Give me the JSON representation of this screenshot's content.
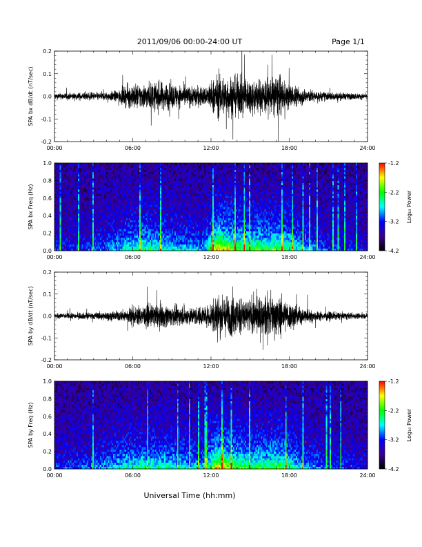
{
  "header": {
    "title": "2011/09/06  00:00-24:00 UT",
    "page": "Page 1/1"
  },
  "footer": {
    "xlabel": "Universal Time (hh:mm)"
  },
  "colorbar": {
    "label": "Log₁₀ Power",
    "ticks": [
      "-1.2",
      "-2.2",
      "-3.2",
      "-4.2"
    ],
    "colors": [
      "#ff0000",
      "#ffff00",
      "#00ff00",
      "#00ffff",
      "#0000ff",
      "#3a0090",
      "#000000"
    ]
  },
  "chart_data": [
    {
      "type": "line",
      "ylabel": "SPA bx dB/dt (nT/sec)",
      "x_ticks": [
        "00:00",
        "06:00",
        "12:00",
        "18:00",
        "24:00"
      ],
      "y_ticks": [
        "0.2",
        "0.1",
        "0.0",
        "-0.1",
        "-0.2"
      ],
      "ylim": [
        -0.2,
        0.2
      ],
      "xlim_hours": [
        0,
        24
      ],
      "line_color": "#000000",
      "envelope": {
        "hours": [
          0,
          2,
          4,
          5,
          5.5,
          6,
          7,
          8,
          9,
          10,
          11,
          11.5,
          12,
          12.5,
          13,
          14,
          15,
          16,
          17,
          17.5,
          18,
          19,
          20,
          22,
          24
        ],
        "amplitude": [
          0.03,
          0.035,
          0.04,
          0.06,
          0.1,
          0.12,
          0.12,
          0.14,
          0.12,
          0.1,
          0.1,
          0.09,
          0.15,
          0.2,
          0.2,
          0.19,
          0.17,
          0.17,
          0.2,
          0.15,
          0.12,
          0.08,
          0.05,
          0.035,
          0.025
        ]
      }
    },
    {
      "type": "heatmap",
      "ylabel": "SPA bx Freq (Hz)",
      "x_ticks": [
        "00:00",
        "06:00",
        "12:00",
        "18:00",
        "24:00"
      ],
      "y_ticks": [
        "1.0",
        "0.8",
        "0.6",
        "0.4",
        "0.2",
        "0.0"
      ],
      "ylim": [
        0.0,
        1.0
      ],
      "xlim_hours": [
        0,
        24
      ],
      "zlim_log10_power": [
        -4.2,
        -1.2
      ],
      "activity": {
        "hours": [
          0,
          3,
          5,
          6,
          7,
          8,
          10,
          11.5,
          12.5,
          14,
          16,
          17.5,
          19,
          21,
          24
        ],
        "level": [
          0.15,
          0.2,
          0.35,
          0.45,
          0.5,
          0.45,
          0.35,
          0.3,
          0.8,
          0.6,
          0.55,
          0.6,
          0.35,
          0.2,
          0.12
        ]
      }
    },
    {
      "type": "line",
      "ylabel": "SPA by dB/dt (nT/sec)",
      "x_ticks": [
        "00:00",
        "06:00",
        "12:00",
        "18:00",
        "24:00"
      ],
      "y_ticks": [
        "0.2",
        "0.1",
        "0.0",
        "-0.1",
        "-0.2"
      ],
      "ylim": [
        -0.2,
        0.2
      ],
      "xlim_hours": [
        0,
        24
      ],
      "line_color": "#000000",
      "envelope": {
        "hours": [
          0,
          2,
          4,
          5,
          6,
          7,
          8,
          9,
          10,
          11,
          11.8,
          12.2,
          13,
          14,
          15,
          16,
          17,
          18,
          19,
          20,
          22,
          24
        ],
        "amplitude": [
          0.025,
          0.03,
          0.04,
          0.05,
          0.09,
          0.1,
          0.12,
          0.1,
          0.09,
          0.09,
          0.1,
          0.2,
          0.2,
          0.19,
          0.17,
          0.18,
          0.2,
          0.14,
          0.08,
          0.05,
          0.035,
          0.025
        ]
      }
    },
    {
      "type": "heatmap",
      "ylabel": "SPA by Freq (Hz)",
      "x_ticks": [
        "00:00",
        "06:00",
        "12:00",
        "18:00",
        "24:00"
      ],
      "y_ticks": [
        "1.0",
        "0.8",
        "0.6",
        "0.4",
        "0.2",
        "0.0"
      ],
      "ylim": [
        0.0,
        1.0
      ],
      "xlim_hours": [
        0,
        24
      ],
      "zlim_log10_power": [
        -4.2,
        -1.2
      ],
      "activity": {
        "hours": [
          0,
          3,
          5,
          6,
          7,
          8,
          10,
          11.5,
          12.5,
          14,
          16,
          17.5,
          19,
          21,
          24
        ],
        "level": [
          0.18,
          0.25,
          0.4,
          0.45,
          0.5,
          0.45,
          0.4,
          0.35,
          0.8,
          0.6,
          0.55,
          0.6,
          0.35,
          0.2,
          0.15
        ]
      }
    }
  ]
}
